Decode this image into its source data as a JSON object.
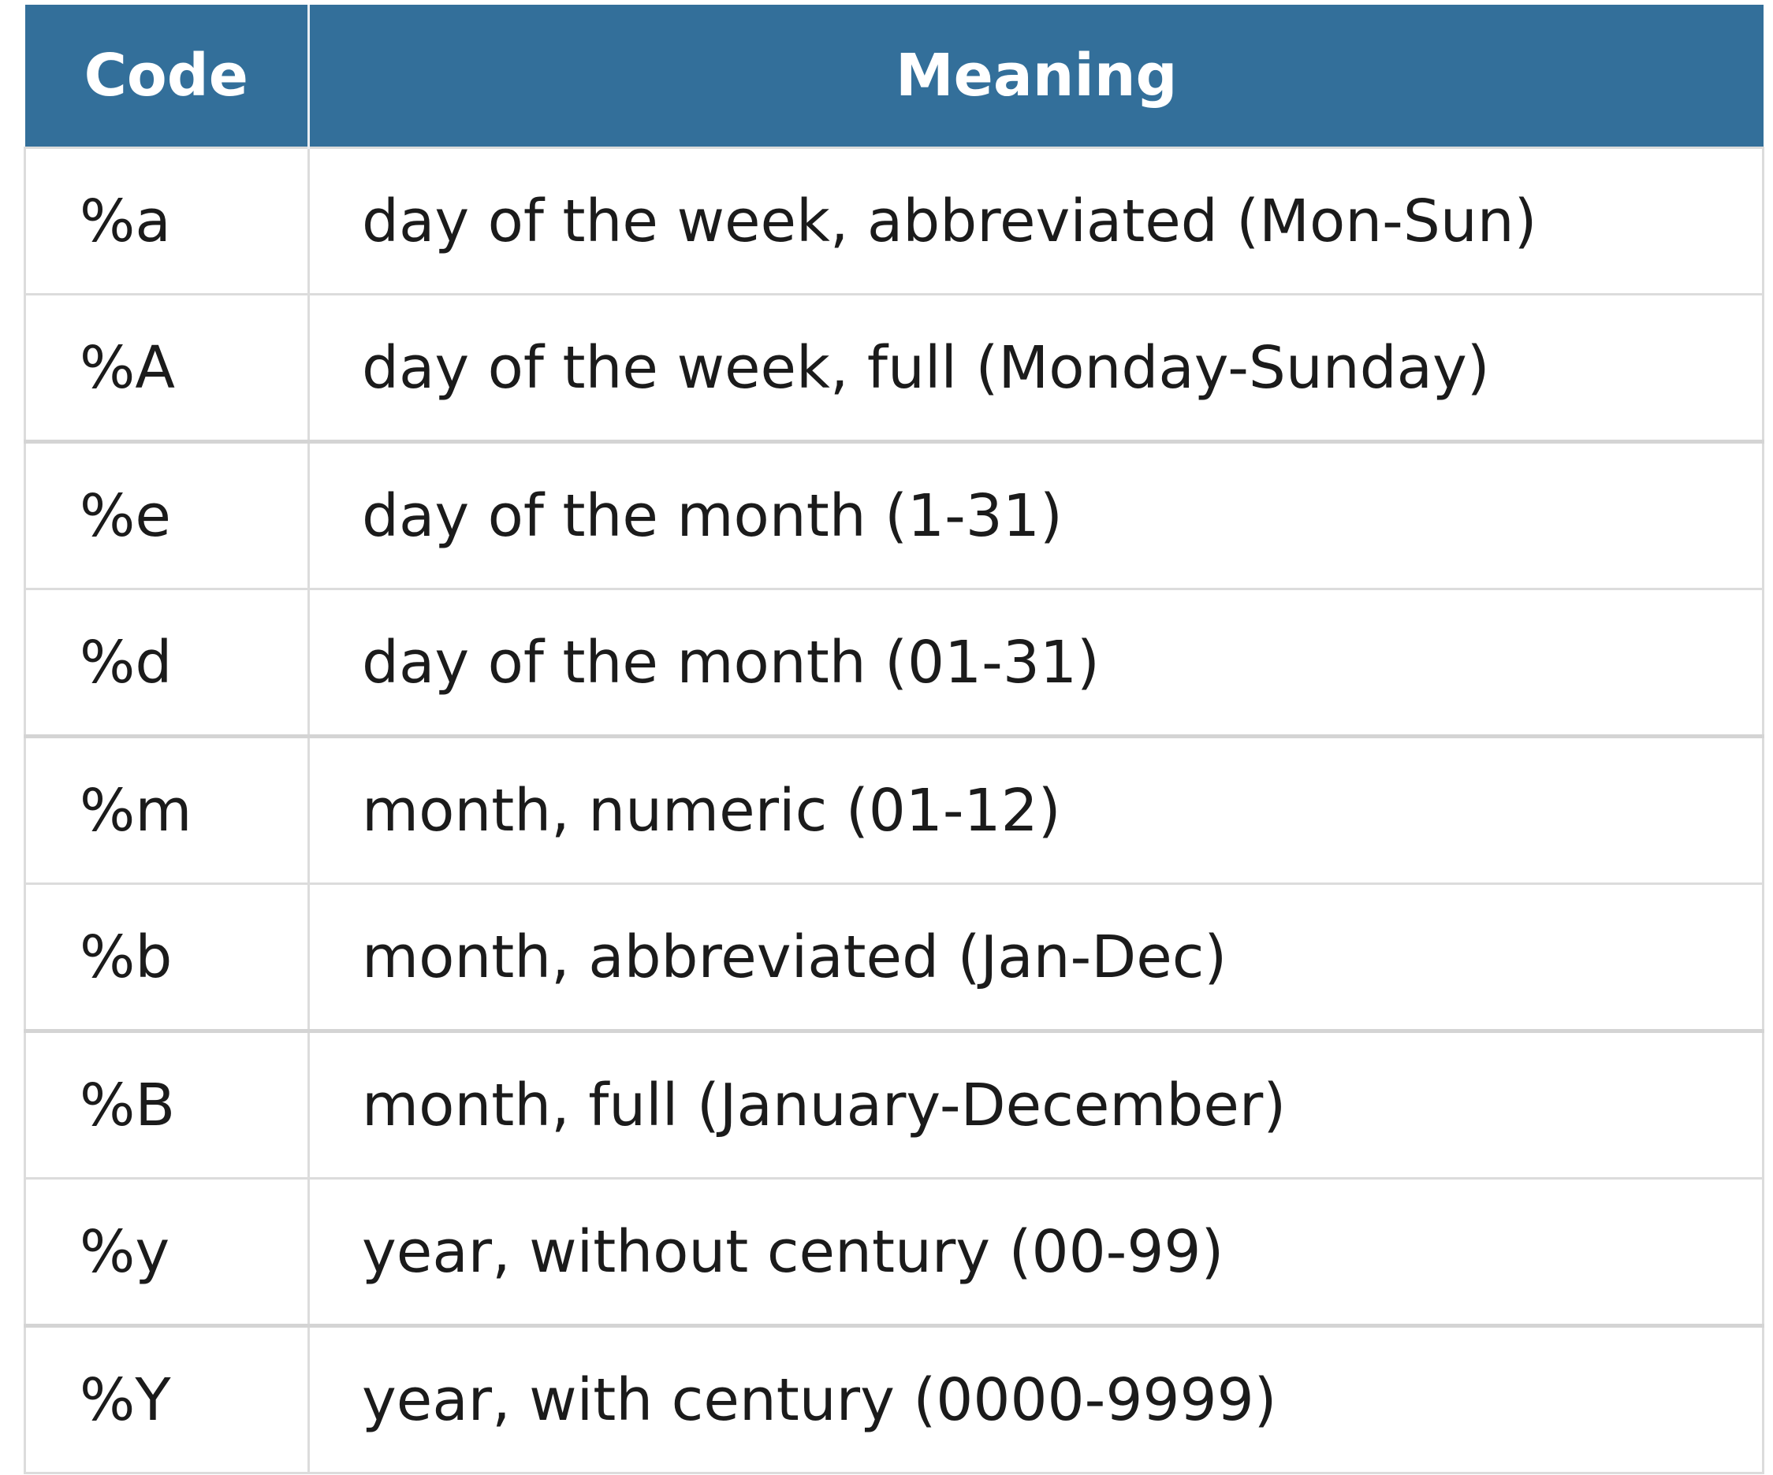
{
  "table": {
    "headers": {
      "code": "Code",
      "meaning": "Meaning"
    },
    "rows": [
      {
        "code": "%a",
        "meaning": "day of the week, abbreviated (Mon-Sun)"
      },
      {
        "code": "%A",
        "meaning": "day of the week, full (Monday-Sunday)"
      },
      {
        "code": "%e",
        "meaning": "day of the month (1-31)"
      },
      {
        "code": "%d",
        "meaning": "day of the month (01-31)"
      },
      {
        "code": "%m",
        "meaning": "month, numeric (01-12)"
      },
      {
        "code": "%b",
        "meaning": "month, abbreviated (Jan-Dec)"
      },
      {
        "code": "%B",
        "meaning": "month, full (January-December)"
      },
      {
        "code": "%y",
        "meaning": "year, without century (00-99)"
      },
      {
        "code": "%Y",
        "meaning": "year, with century (0000-9999)"
      }
    ],
    "colors": {
      "header_background": "#336f9a",
      "header_text": "#ffffff",
      "cell_text": "#1b1b1b",
      "border": "#dcdcdc"
    }
  }
}
